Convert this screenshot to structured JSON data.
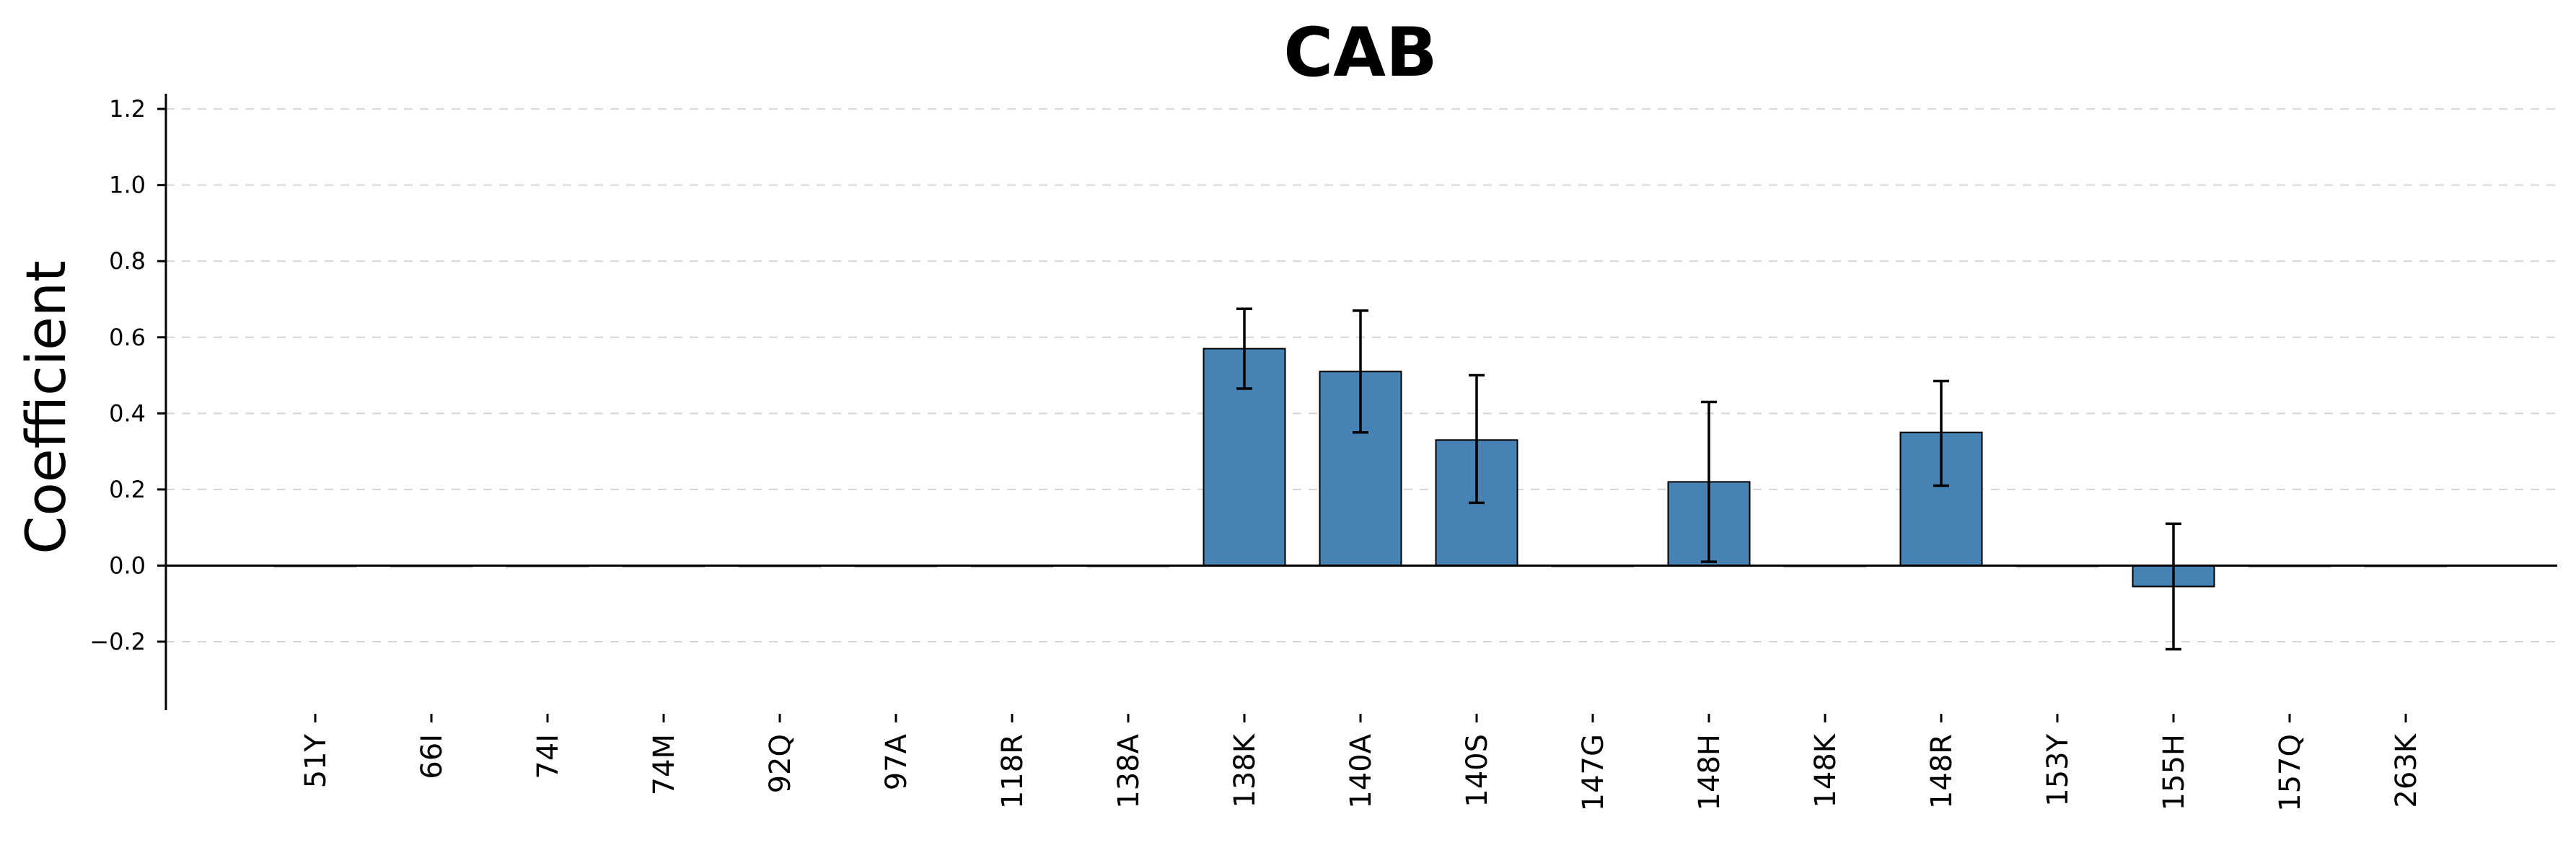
{
  "chart_data": {
    "type": "bar",
    "title": "CAB",
    "xlabel": "",
    "ylabel": "Coefficient",
    "ylim": [
      -0.38,
      1.24
    ],
    "yticks": [
      -0.2,
      0.0,
      0.2,
      0.4,
      0.6,
      0.8,
      1.0,
      1.2
    ],
    "ytick_labels": [
      "−0.2",
      "0.0",
      "0.2",
      "0.4",
      "0.6",
      "0.8",
      "1.0",
      "1.2"
    ],
    "grid": "y-dashed",
    "colors": {
      "bar": "#4682b4",
      "edge": "#000000"
    },
    "categories": [
      "51Y",
      "66I",
      "74I",
      "74M",
      "92Q",
      "97A",
      "118R",
      "138A",
      "138K",
      "140A",
      "140S",
      "147G",
      "148H",
      "148K",
      "148R",
      "153Y",
      "155H",
      "157Q",
      "263K"
    ],
    "values": [
      0,
      0,
      0,
      0,
      0,
      0,
      0,
      0,
      0.57,
      0.51,
      0.33,
      0,
      0.22,
      0,
      0.35,
      0,
      -0.055,
      0,
      0
    ],
    "error_low": [
      0,
      0,
      0,
      0,
      0,
      0,
      0,
      0,
      0.465,
      0.35,
      0.165,
      0,
      0.01,
      0,
      0.21,
      0,
      -0.22,
      0,
      0
    ],
    "error_high": [
      0,
      0,
      0,
      0,
      0,
      0,
      0,
      0,
      0.675,
      0.67,
      0.5,
      0,
      0.43,
      0,
      0.485,
      0,
      0.11,
      0,
      0
    ]
  }
}
